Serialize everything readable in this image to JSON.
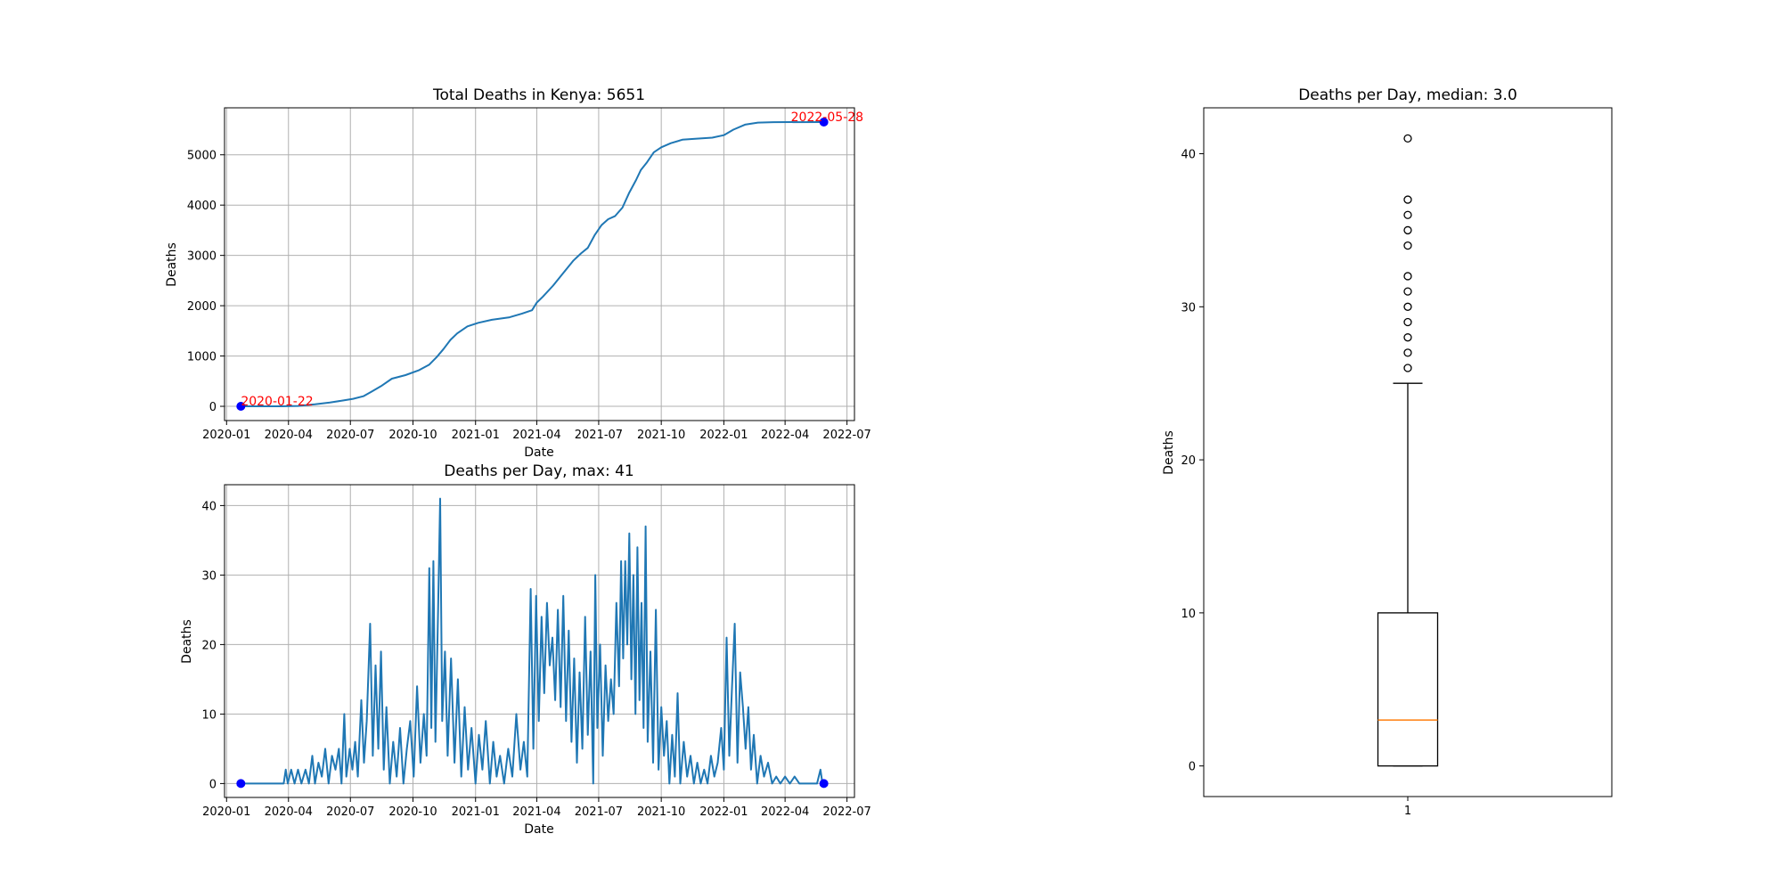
{
  "chart_data": [
    {
      "type": "line",
      "title": "Total Deaths in Kenya: 5651",
      "xlabel": "Date",
      "ylabel": "Deaths",
      "grid": true,
      "xlim": [
        "2019-12-29",
        "2022-07-12"
      ],
      "ylim": [
        -283,
        5934
      ],
      "x_ticks": [
        "2020-01",
        "2020-04",
        "2020-07",
        "2020-10",
        "2021-01",
        "2021-04",
        "2021-07",
        "2021-10",
        "2022-01",
        "2022-04",
        "2022-07"
      ],
      "y_ticks": [
        0,
        1000,
        2000,
        3000,
        4000,
        5000
      ],
      "series": [
        {
          "color": "#1f77b4",
          "points": [
            [
              "2020-01-22",
              0
            ],
            [
              "2020-03-20",
              0
            ],
            [
              "2020-04-15",
              8
            ],
            [
              "2020-05-10",
              40
            ],
            [
              "2020-06-01",
              75
            ],
            [
              "2020-06-20",
              115
            ],
            [
              "2020-07-05",
              150
            ],
            [
              "2020-07-20",
              200
            ],
            [
              "2020-08-01",
              290
            ],
            [
              "2020-08-15",
              400
            ],
            [
              "2020-08-31",
              550
            ],
            [
              "2020-09-20",
              620
            ],
            [
              "2020-10-10",
              720
            ],
            [
              "2020-10-25",
              830
            ],
            [
              "2020-11-05",
              980
            ],
            [
              "2020-11-15",
              1140
            ],
            [
              "2020-11-25",
              1320
            ],
            [
              "2020-12-05",
              1450
            ],
            [
              "2020-12-20",
              1590
            ],
            [
              "2021-01-05",
              1660
            ],
            [
              "2021-01-25",
              1720
            ],
            [
              "2021-02-20",
              1770
            ],
            [
              "2021-03-10",
              1840
            ],
            [
              "2021-03-25",
              1910
            ],
            [
              "2021-04-01",
              2060
            ],
            [
              "2021-04-10",
              2180
            ],
            [
              "2021-04-25",
              2400
            ],
            [
              "2021-05-10",
              2650
            ],
            [
              "2021-05-25",
              2900
            ],
            [
              "2021-06-05",
              3040
            ],
            [
              "2021-06-15",
              3150
            ],
            [
              "2021-06-25",
              3400
            ],
            [
              "2021-07-05",
              3600
            ],
            [
              "2021-07-15",
              3720
            ],
            [
              "2021-07-25",
              3780
            ],
            [
              "2021-08-05",
              3950
            ],
            [
              "2021-08-15",
              4250
            ],
            [
              "2021-08-25",
              4500
            ],
            [
              "2021-09-01",
              4700
            ],
            [
              "2021-09-10",
              4850
            ],
            [
              "2021-09-20",
              5050
            ],
            [
              "2021-10-01",
              5150
            ],
            [
              "2021-10-15",
              5230
            ],
            [
              "2021-11-01",
              5300
            ],
            [
              "2021-11-20",
              5320
            ],
            [
              "2021-12-15",
              5340
            ],
            [
              "2022-01-01",
              5390
            ],
            [
              "2022-01-15",
              5500
            ],
            [
              "2022-02-01",
              5600
            ],
            [
              "2022-02-20",
              5640
            ],
            [
              "2022-03-15",
              5648
            ],
            [
              "2022-05-28",
              5651
            ]
          ]
        }
      ],
      "markers": [
        {
          "x": "2020-01-22",
          "y": 0,
          "label": "2020-01-22",
          "color": "#0000ff",
          "label_color": "#ff0000"
        },
        {
          "x": "2022-05-28",
          "y": 5651,
          "label": "2022-05-28",
          "color": "#0000ff",
          "label_color": "#ff0000"
        }
      ]
    },
    {
      "type": "line",
      "title": "Deaths per Day, max: 41",
      "xlabel": "Date",
      "ylabel": "Deaths",
      "grid": true,
      "xlim": [
        "2019-12-29",
        "2022-07-12"
      ],
      "ylim": [
        -2,
        43
      ],
      "x_ticks": [
        "2020-01",
        "2020-04",
        "2020-07",
        "2020-10",
        "2021-01",
        "2021-04",
        "2021-07",
        "2021-10",
        "2022-01",
        "2022-04",
        "2022-07"
      ],
      "y_ticks": [
        0,
        10,
        20,
        30,
        40
      ],
      "series": [
        {
          "color": "#1f77b4",
          "points": [
            [
              "2020-01-22",
              0
            ],
            [
              "2020-03-25",
              0
            ],
            [
              "2020-03-28",
              2
            ],
            [
              "2020-03-31",
              0
            ],
            [
              "2020-04-05",
              2
            ],
            [
              "2020-04-10",
              0
            ],
            [
              "2020-04-15",
              2
            ],
            [
              "2020-04-20",
              0
            ],
            [
              "2020-04-26",
              2
            ],
            [
              "2020-05-01",
              0
            ],
            [
              "2020-05-06",
              4
            ],
            [
              "2020-05-10",
              0
            ],
            [
              "2020-05-15",
              3
            ],
            [
              "2020-05-20",
              1
            ],
            [
              "2020-05-25",
              5
            ],
            [
              "2020-05-30",
              0
            ],
            [
              "2020-06-04",
              4
            ],
            [
              "2020-06-09",
              2
            ],
            [
              "2020-06-14",
              5
            ],
            [
              "2020-06-18",
              0
            ],
            [
              "2020-06-22",
              10
            ],
            [
              "2020-06-25",
              1
            ],
            [
              "2020-06-30",
              5
            ],
            [
              "2020-07-04",
              2
            ],
            [
              "2020-07-08",
              6
            ],
            [
              "2020-07-12",
              1
            ],
            [
              "2020-07-17",
              12
            ],
            [
              "2020-07-21",
              3
            ],
            [
              "2020-07-25",
              9
            ],
            [
              "2020-07-30",
              23
            ],
            [
              "2020-08-03",
              4
            ],
            [
              "2020-08-07",
              17
            ],
            [
              "2020-08-11",
              5
            ],
            [
              "2020-08-15",
              19
            ],
            [
              "2020-08-19",
              2
            ],
            [
              "2020-08-23",
              11
            ],
            [
              "2020-08-28",
              0
            ],
            [
              "2020-09-02",
              6
            ],
            [
              "2020-09-07",
              1
            ],
            [
              "2020-09-12",
              8
            ],
            [
              "2020-09-17",
              0
            ],
            [
              "2020-09-22",
              5
            ],
            [
              "2020-09-27",
              9
            ],
            [
              "2020-10-02",
              1
            ],
            [
              "2020-10-07",
              14
            ],
            [
              "2020-10-12",
              3
            ],
            [
              "2020-10-17",
              10
            ],
            [
              "2020-10-21",
              4
            ],
            [
              "2020-10-25",
              31
            ],
            [
              "2020-10-28",
              8
            ],
            [
              "2020-10-31",
              32
            ],
            [
              "2020-11-03",
              6
            ],
            [
              "2020-11-07",
              25
            ],
            [
              "2020-11-10",
              41
            ],
            [
              "2020-11-13",
              9
            ],
            [
              "2020-11-17",
              19
            ],
            [
              "2020-11-21",
              4
            ],
            [
              "2020-11-26",
              18
            ],
            [
              "2020-12-01",
              3
            ],
            [
              "2020-12-06",
              15
            ],
            [
              "2020-12-11",
              1
            ],
            [
              "2020-12-16",
              11
            ],
            [
              "2020-12-21",
              2
            ],
            [
              "2020-12-26",
              8
            ],
            [
              "2021-01-01",
              0
            ],
            [
              "2021-01-06",
              7
            ],
            [
              "2021-01-11",
              2
            ],
            [
              "2021-01-16",
              9
            ],
            [
              "2021-01-22",
              0
            ],
            [
              "2021-01-27",
              6
            ],
            [
              "2021-02-01",
              1
            ],
            [
              "2021-02-06",
              4
            ],
            [
              "2021-02-12",
              0
            ],
            [
              "2021-02-18",
              5
            ],
            [
              "2021-02-24",
              1
            ],
            [
              "2021-03-02",
              10
            ],
            [
              "2021-03-08",
              2
            ],
            [
              "2021-03-13",
              6
            ],
            [
              "2021-03-18",
              1
            ],
            [
              "2021-03-23",
              28
            ],
            [
              "2021-03-27",
              5
            ],
            [
              "2021-03-31",
              27
            ],
            [
              "2021-04-04",
              9
            ],
            [
              "2021-04-08",
              24
            ],
            [
              "2021-04-12",
              13
            ],
            [
              "2021-04-16",
              26
            ],
            [
              "2021-04-20",
              17
            ],
            [
              "2021-04-24",
              21
            ],
            [
              "2021-04-28",
              12
            ],
            [
              "2021-05-02",
              25
            ],
            [
              "2021-05-06",
              11
            ],
            [
              "2021-05-10",
              27
            ],
            [
              "2021-05-14",
              9
            ],
            [
              "2021-05-18",
              22
            ],
            [
              "2021-05-22",
              6
            ],
            [
              "2021-05-26",
              18
            ],
            [
              "2021-05-30",
              3
            ],
            [
              "2021-06-03",
              16
            ],
            [
              "2021-06-07",
              5
            ],
            [
              "2021-06-11",
              24
            ],
            [
              "2021-06-15",
              7
            ],
            [
              "2021-06-19",
              19
            ],
            [
              "2021-06-23",
              0
            ],
            [
              "2021-06-26",
              30
            ],
            [
              "2021-06-29",
              8
            ],
            [
              "2021-07-03",
              20
            ],
            [
              "2021-07-07",
              4
            ],
            [
              "2021-07-11",
              17
            ],
            [
              "2021-07-15",
              9
            ],
            [
              "2021-07-19",
              15
            ],
            [
              "2021-07-23",
              10
            ],
            [
              "2021-07-27",
              26
            ],
            [
              "2021-07-31",
              14
            ],
            [
              "2021-08-03",
              32
            ],
            [
              "2021-08-06",
              18
            ],
            [
              "2021-08-09",
              32
            ],
            [
              "2021-08-12",
              20
            ],
            [
              "2021-08-15",
              36
            ],
            [
              "2021-08-18",
              15
            ],
            [
              "2021-08-21",
              30
            ],
            [
              "2021-08-24",
              10
            ],
            [
              "2021-08-27",
              34
            ],
            [
              "2021-08-30",
              12
            ],
            [
              "2021-09-02",
              26
            ],
            [
              "2021-09-05",
              8
            ],
            [
              "2021-09-08",
              37
            ],
            [
              "2021-09-11",
              6
            ],
            [
              "2021-09-15",
              19
            ],
            [
              "2021-09-19",
              3
            ],
            [
              "2021-09-23",
              25
            ],
            [
              "2021-09-27",
              2
            ],
            [
              "2021-10-01",
              11
            ],
            [
              "2021-10-05",
              4
            ],
            [
              "2021-10-09",
              9
            ],
            [
              "2021-10-13",
              0
            ],
            [
              "2021-10-17",
              7
            ],
            [
              "2021-10-21",
              1
            ],
            [
              "2021-10-25",
              13
            ],
            [
              "2021-10-29",
              0
            ],
            [
              "2021-11-03",
              6
            ],
            [
              "2021-11-08",
              1
            ],
            [
              "2021-11-13",
              4
            ],
            [
              "2021-11-18",
              0
            ],
            [
              "2021-11-23",
              3
            ],
            [
              "2021-11-28",
              0
            ],
            [
              "2021-12-03",
              2
            ],
            [
              "2021-12-08",
              0
            ],
            [
              "2021-12-13",
              4
            ],
            [
              "2021-12-18",
              1
            ],
            [
              "2021-12-23",
              3
            ],
            [
              "2021-12-28",
              8
            ],
            [
              "2022-01-01",
              2
            ],
            [
              "2022-01-05",
              21
            ],
            [
              "2022-01-09",
              4
            ],
            [
              "2022-01-13",
              14
            ],
            [
              "2022-01-17",
              23
            ],
            [
              "2022-01-21",
              3
            ],
            [
              "2022-01-25",
              16
            ],
            [
              "2022-01-29",
              11
            ],
            [
              "2022-02-02",
              5
            ],
            [
              "2022-02-06",
              11
            ],
            [
              "2022-02-10",
              2
            ],
            [
              "2022-02-14",
              7
            ],
            [
              "2022-02-19",
              0
            ],
            [
              "2022-02-24",
              4
            ],
            [
              "2022-03-01",
              1
            ],
            [
              "2022-03-07",
              3
            ],
            [
              "2022-03-13",
              0
            ],
            [
              "2022-03-19",
              1
            ],
            [
              "2022-03-25",
              0
            ],
            [
              "2022-04-01",
              1
            ],
            [
              "2022-04-08",
              0
            ],
            [
              "2022-04-15",
              1
            ],
            [
              "2022-04-22",
              0
            ],
            [
              "2022-05-01",
              0
            ],
            [
              "2022-05-10",
              0
            ],
            [
              "2022-05-18",
              0
            ],
            [
              "2022-05-23",
              2
            ],
            [
              "2022-05-26",
              0
            ],
            [
              "2022-05-28",
              0
            ]
          ]
        }
      ],
      "markers": [
        {
          "x": "2020-01-22",
          "y": 0,
          "color": "#0000ff"
        },
        {
          "x": "2022-05-28",
          "y": 0,
          "color": "#0000ff"
        }
      ]
    },
    {
      "type": "box",
      "title": "Deaths per Day, median: 3.0",
      "ylabel": "Deaths",
      "grid": false,
      "ylim": [
        -2,
        43
      ],
      "y_ticks": [
        0,
        10,
        20,
        30,
        40
      ],
      "categories": [
        "1"
      ],
      "box": {
        "min": 0,
        "q1": 0,
        "median": 3,
        "q3": 10,
        "whisker_high": 25,
        "outliers": [
          26,
          27,
          28,
          29,
          30,
          31,
          32,
          34,
          35,
          36,
          37,
          41
        ],
        "box_color": "#000000",
        "median_color": "#ff7f0e"
      }
    }
  ]
}
